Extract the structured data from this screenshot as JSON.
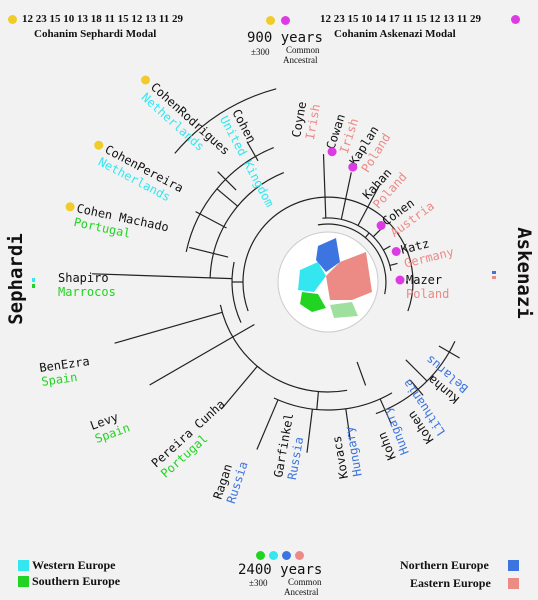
{
  "header": {
    "sephardi_modal_numbers": "12 23 15 10 13 18 11 15 12 13 11 29",
    "sephardi_modal_label": "Cohanim Sephardi Modal",
    "askenazi_modal_numbers": "12 23 15 10 14 17 11 15 12 13 11 29",
    "askenazi_modal_label": "Cohanim Askenazi Modal",
    "top_years_value": "900",
    "top_years_unit": "years",
    "top_years_error": "±300",
    "top_ancestral_line1": "Common",
    "top_ancestral_line2": "Ancestral"
  },
  "bottom": {
    "years_value": "2400",
    "years_unit": "years",
    "years_error": "±300",
    "ancestral_line1": "Common",
    "ancestral_line2": "Ancestral"
  },
  "groups": {
    "sephardi": "Sephardi",
    "askenazi": "Askenazi"
  },
  "legend": {
    "western": "Western Europe",
    "southern": "Southern Europe",
    "northern": "Northern Europe",
    "eastern": "Eastern Europe"
  },
  "colors": {
    "western": "#33e6f0",
    "southern": "#22d422",
    "northern": "#3c74e0",
    "eastern": "#ec8a86",
    "modal_sephardi": "#f0cb2a",
    "modal_askenazi": "#dd3ae6",
    "branch": "#222222"
  },
  "leaves": [
    {
      "name": "Cohen",
      "origin": "United Kingdom"
    },
    {
      "name": "CohenRodrigues",
      "origin": "Netherlands"
    },
    {
      "name": "CohenPereira",
      "origin": "Netherlands"
    },
    {
      "name": "Cohen Machado",
      "origin": "Portugal"
    },
    {
      "name": "Shapiro",
      "origin": "Marrocos"
    },
    {
      "name": "BenEzra",
      "origin": "Spain"
    },
    {
      "name": "Levy",
      "origin": "Spain"
    },
    {
      "name": "Pereira Cunha",
      "origin": "Portugal"
    },
    {
      "name": "Ragan",
      "origin": "Russia"
    },
    {
      "name": "Garfinkel",
      "origin": "Russia"
    },
    {
      "name": "Kovacs",
      "origin": "Hungary"
    },
    {
      "name": "Kohn",
      "origin": "Hungary"
    },
    {
      "name": "Kohen",
      "origin": "Lithuania"
    },
    {
      "name": "Kunha",
      "origin": "Belarus"
    },
    {
      "name": "Mazer",
      "origin": "Poland"
    },
    {
      "name": "Katz",
      "origin": "Germany"
    },
    {
      "name": "Cohen",
      "origin": "Austria"
    },
    {
      "name": "Kahan",
      "origin": "Poland"
    },
    {
      "name": "Kaplan",
      "origin": "Poland"
    },
    {
      "name": "Cowan",
      "origin": "Irish"
    },
    {
      "name": "Coyne",
      "origin": "Irish"
    }
  ]
}
